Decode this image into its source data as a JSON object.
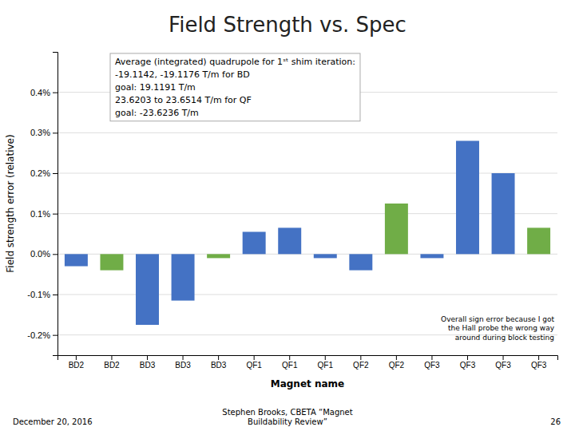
{
  "chart_data": {
    "type": "bar",
    "title": "Field Strength vs. Spec",
    "x_label": "Magnet name",
    "y_label": "Field strength error (relative)",
    "categories": [
      "BD2",
      "BD2",
      "BD3",
      "BD3",
      "BD3",
      "QF1",
      "QF1",
      "QF1",
      "QF2",
      "QF2",
      "QF3",
      "QF3",
      "QF3",
      "QF3"
    ],
    "values": [
      -0.0003,
      -0.0004,
      -0.00175,
      -0.00115,
      -0.0001,
      0.00055,
      0.00065,
      -0.0001,
      -0.0004,
      0.00125,
      -0.0001,
      0.0028,
      0.002,
      0.00065
    ],
    "colors": [
      "#4472C4",
      "#70AD47",
      "#4472C4",
      "#4472C4",
      "#70AD47",
      "#4472C4",
      "#4472C4",
      "#4472C4",
      "#4472C4",
      "#70AD47",
      "#4472C4",
      "#4472C4",
      "#4472C4",
      "#70AD47"
    ],
    "ylim": [
      -0.0025,
      0.005
    ],
    "yticks": [
      {
        "value": -0.002,
        "label": "-0.2%"
      },
      {
        "value": -0.001,
        "label": "-0.1%"
      },
      {
        "value": 0.0,
        "label": "0.0%"
      },
      {
        "value": 0.001,
        "label": "0.1%"
      },
      {
        "value": 0.002,
        "label": "0.2%"
      },
      {
        "value": 0.003,
        "label": "0.3%"
      },
      {
        "value": 0.004,
        "label": "0.4%"
      }
    ],
    "grid": true,
    "annotations": [
      "Average (integrated) quadrupole for 1ˢᵗ shim iteration:\n-19.1142, -19.1176 T/m for BD\ngoal: 19.1191 T/m\n23.6203 to 23.6514 T/m for QF\ngoal: -23.6236 T/m",
      "Overall sign error because I got\nthe Hall probe the wrong way\naround during block testing"
    ],
    "footer": [
      "December 20, 2016",
      "Stephen Brooks, CBETA “Magnet\nBuildability Review”",
      "26"
    ]
  }
}
